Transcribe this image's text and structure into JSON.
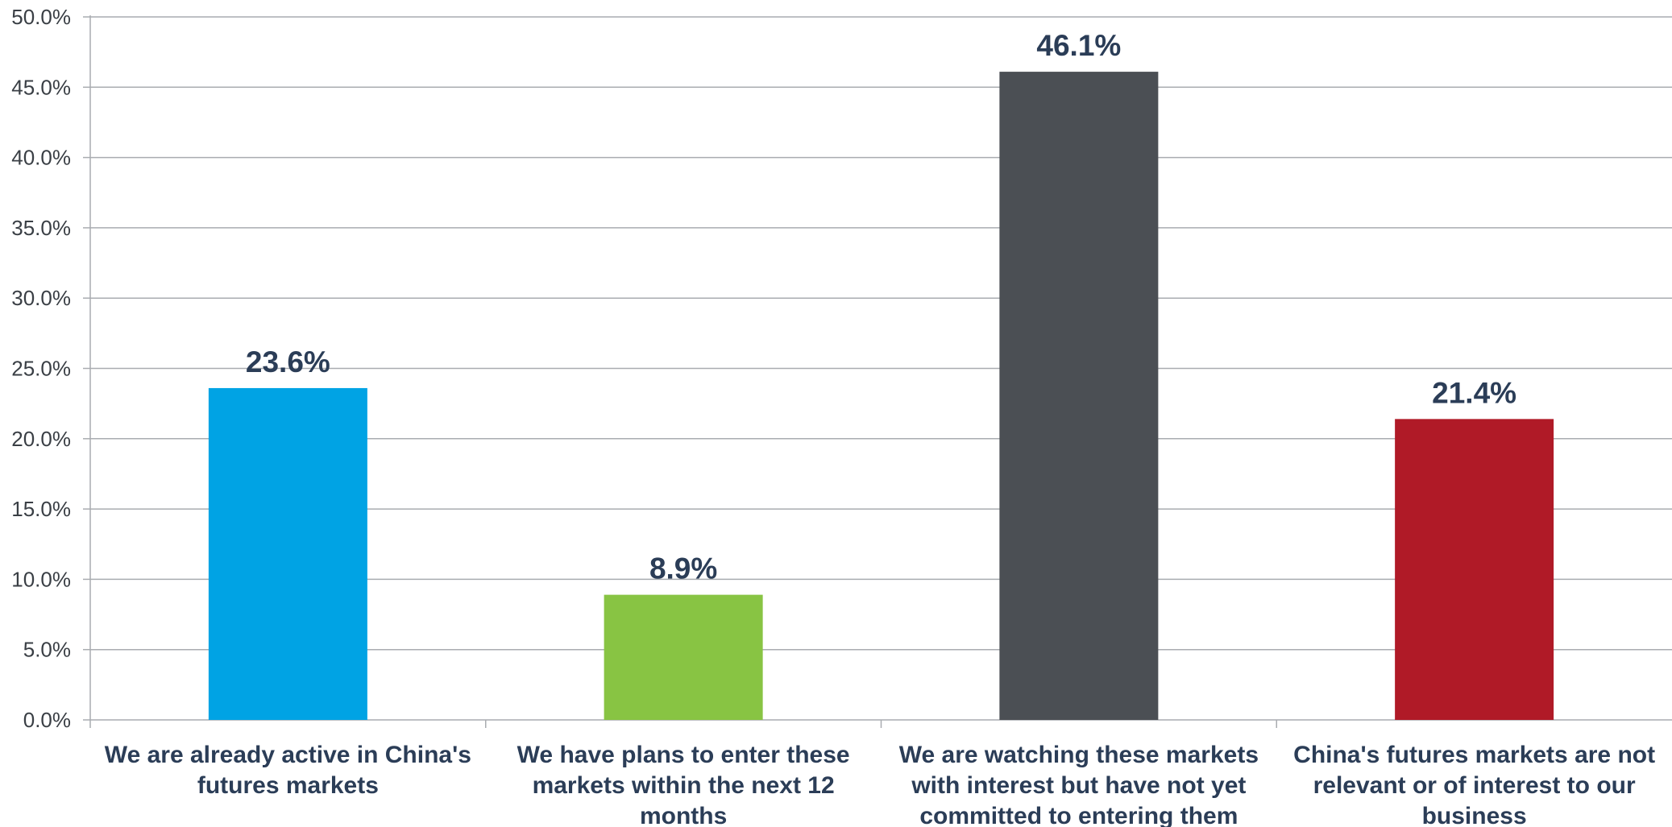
{
  "chart_data": {
    "type": "bar",
    "categories": [
      [
        "We are already active in China's",
        "futures markets"
      ],
      [
        "We have plans to enter these",
        "markets within the next 12",
        "months"
      ],
      [
        "We are watching these markets",
        "with interest but have not yet",
        "committed to entering them"
      ],
      [
        "China's futures markets are not",
        "relevant or of interest to our",
        "business"
      ]
    ],
    "values": [
      23.6,
      8.9,
      46.1,
      21.4
    ],
    "data_labels": [
      "23.6%",
      "8.9%",
      "46.1%",
      "21.4%"
    ],
    "colors": [
      "#00a3e4",
      "#88c443",
      "#4b4f54",
      "#b01a27"
    ],
    "ylim": [
      0,
      50
    ],
    "yticks": [
      "0.0%",
      "5.0%",
      "10.0%",
      "15.0%",
      "20.0%",
      "25.0%",
      "30.0%",
      "35.0%",
      "40.0%",
      "45.0%",
      "50.0%"
    ],
    "grid": true,
    "title": "",
    "xlabel": "",
    "ylabel": ""
  }
}
